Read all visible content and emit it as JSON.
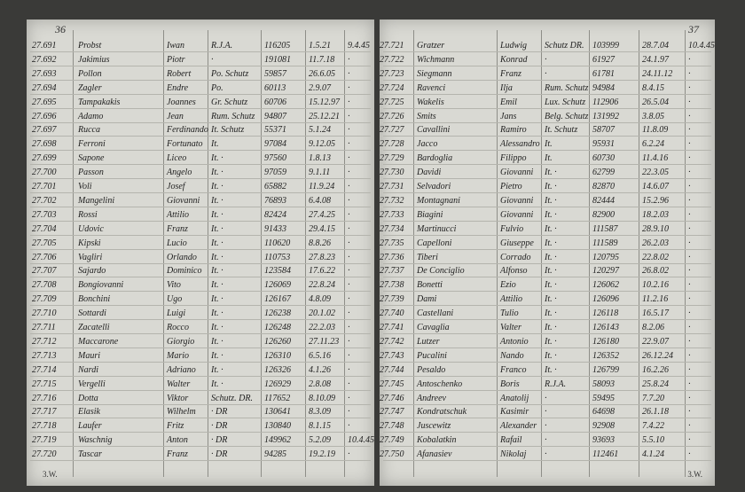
{
  "pages": [
    {
      "page_number": "36",
      "footer": "3.W.",
      "rows": [
        {
          "no": "27.691",
          "surname": "Probst",
          "name": "Iwan",
          "nat": "R.J.A.",
          "id": "116205",
          "born": "1.5.21",
          "date": "9.4.45"
        },
        {
          "no": "27.692",
          "surname": "Jakimius",
          "name": "Piotr",
          "nat": "·",
          "id": "191081",
          "born": "11.7.18",
          "date": "·"
        },
        {
          "no": "27.693",
          "surname": "Pollon",
          "name": "Robert",
          "nat": "Po. Schutz",
          "id": "59857",
          "born": "26.6.05",
          "date": "·"
        },
        {
          "no": "27.694",
          "surname": "Zagler",
          "name": "Endre",
          "nat": "Po.",
          "id": "60113",
          "born": "2.9.07",
          "date": "·"
        },
        {
          "no": "27.695",
          "surname": "Tampakakis",
          "name": "Joannes",
          "nat": "Gr. Schutz",
          "id": "60706",
          "born": "15.12.97",
          "date": "·"
        },
        {
          "no": "27.696",
          "surname": "Adamo",
          "name": "Jean",
          "nat": "Rum. Schutz",
          "id": "94807",
          "born": "25.12.21",
          "date": "·"
        },
        {
          "no": "27.697",
          "surname": "Rucca",
          "name": "Ferdinando",
          "nat": "It. Schutz",
          "id": "55371",
          "born": "5.1.24",
          "date": "·"
        },
        {
          "no": "27.698",
          "surname": "Ferroni",
          "name": "Fortunato",
          "nat": "It.",
          "id": "97084",
          "born": "9.12.05",
          "date": "·"
        },
        {
          "no": "27.699",
          "surname": "Sapone",
          "name": "Liceo",
          "nat": "It. ·",
          "id": "97560",
          "born": "1.8.13",
          "date": "·"
        },
        {
          "no": "27.700",
          "surname": "Passon",
          "name": "Angelo",
          "nat": "It. ·",
          "id": "97059",
          "born": "9.1.11",
          "date": "·"
        },
        {
          "no": "27.701",
          "surname": "Voli",
          "name": "Josef",
          "nat": "It. ·",
          "id": "65882",
          "born": "11.9.24",
          "date": "·"
        },
        {
          "no": "27.702",
          "surname": "Mangelini",
          "name": "Giovanni",
          "nat": "It. ·",
          "id": "76893",
          "born": "6.4.08",
          "date": "·"
        },
        {
          "no": "27.703",
          "surname": "Rossi",
          "name": "Attilio",
          "nat": "It. ·",
          "id": "82424",
          "born": "27.4.25",
          "date": "·"
        },
        {
          "no": "27.704",
          "surname": "Udovic",
          "name": "Franz",
          "nat": "It. ·",
          "id": "91433",
          "born": "29.4.15",
          "date": "·"
        },
        {
          "no": "27.705",
          "surname": "Kipski",
          "name": "Lucio",
          "nat": "It. ·",
          "id": "110620",
          "born": "8.8.26",
          "date": "·"
        },
        {
          "no": "27.706",
          "surname": "Vagliri",
          "name": "Orlando",
          "nat": "It. ·",
          "id": "110753",
          "born": "27.8.23",
          "date": "·"
        },
        {
          "no": "27.707",
          "surname": "Sajardo",
          "name": "Dominico",
          "nat": "It. ·",
          "id": "123584",
          "born": "17.6.22",
          "date": "·"
        },
        {
          "no": "27.708",
          "surname": "Bongiovanni",
          "name": "Vito",
          "nat": "It. ·",
          "id": "126069",
          "born": "22.8.24",
          "date": "·"
        },
        {
          "no": "27.709",
          "surname": "Bonchini",
          "name": "Ugo",
          "nat": "It. ·",
          "id": "126167",
          "born": "4.8.09",
          "date": "·"
        },
        {
          "no": "27.710",
          "surname": "Sottardi",
          "name": "Luigi",
          "nat": "It. ·",
          "id": "126238",
          "born": "20.1.02",
          "date": "·"
        },
        {
          "no": "27.711",
          "surname": "Zacatelli",
          "name": "Rocco",
          "nat": "It. ·",
          "id": "126248",
          "born": "22.2.03",
          "date": "·"
        },
        {
          "no": "27.712",
          "surname": "Maccarone",
          "name": "Giorgio",
          "nat": "It. ·",
          "id": "126260",
          "born": "27.11.23",
          "date": "·"
        },
        {
          "no": "27.713",
          "surname": "Mauri",
          "name": "Mario",
          "nat": "It. ·",
          "id": "126310",
          "born": "6.5.16",
          "date": "·"
        },
        {
          "no": "27.714",
          "surname": "Nardi",
          "name": "Adriano",
          "nat": "It. ·",
          "id": "126326",
          "born": "4.1.26",
          "date": "·"
        },
        {
          "no": "27.715",
          "surname": "Vergelli",
          "name": "Walter",
          "nat": "It. ·",
          "id": "126929",
          "born": "2.8.08",
          "date": "·"
        },
        {
          "no": "27.716",
          "surname": "Dotta",
          "name": "Viktor",
          "nat": "Schutz. DR.",
          "id": "117652",
          "born": "8.10.09",
          "date": "·"
        },
        {
          "no": "27.717",
          "surname": "Elasik",
          "name": "Wilhelm",
          "nat": "· DR",
          "id": "130641",
          "born": "8.3.09",
          "date": "·"
        },
        {
          "no": "27.718",
          "surname": "Laufer",
          "name": "Fritz",
          "nat": "· DR",
          "id": "130840",
          "born": "8.1.15",
          "date": "·"
        },
        {
          "no": "27.719",
          "surname": "Waschnig",
          "name": "Anton",
          "nat": "· DR",
          "id": "149962",
          "born": "5.2.09",
          "date": "10.4.45"
        },
        {
          "no": "27.720",
          "surname": "Tascar",
          "name": "Franz",
          "nat": "· DR",
          "id": "94285",
          "born": "19.2.19",
          "date": "·"
        }
      ]
    },
    {
      "page_number": "37",
      "footer": "3.W.",
      "rows": [
        {
          "no": "27.721",
          "surname": "Gratzer",
          "name": "Ludwig",
          "nat": "Schutz DR.",
          "id": "103999",
          "born": "28.7.04",
          "date": "10.4.45"
        },
        {
          "no": "27.722",
          "surname": "Wichmann",
          "name": "Konrad",
          "nat": "·",
          "id": "61927",
          "born": "24.1.97",
          "date": "·"
        },
        {
          "no": "27.723",
          "surname": "Siegmann",
          "name": "Franz",
          "nat": "·",
          "id": "61781",
          "born": "24.11.12",
          "date": "·"
        },
        {
          "no": "27.724",
          "surname": "Ravenci",
          "name": "Ilja",
          "nat": "Rum. Schutz",
          "id": "94984",
          "born": "8.4.15",
          "date": "·"
        },
        {
          "no": "27.725",
          "surname": "Wakelis",
          "name": "Emil",
          "nat": "Lux. Schutz",
          "id": "112906",
          "born": "26.5.04",
          "date": "·"
        },
        {
          "no": "27.726",
          "surname": "Smits",
          "name": "Jans",
          "nat": "Belg. Schutz",
          "id": "131992",
          "born": "3.8.05",
          "date": "·"
        },
        {
          "no": "27.727",
          "surname": "Cavallini",
          "name": "Ramiro",
          "nat": "It. Schutz",
          "id": "58707",
          "born": "11.8.09",
          "date": "·"
        },
        {
          "no": "27.728",
          "surname": "Jacco",
          "name": "Alessandro",
          "nat": "It.",
          "id": "95931",
          "born": "6.2.24",
          "date": "·"
        },
        {
          "no": "27.729",
          "surname": "Bardoglia",
          "name": "Filippo",
          "nat": "It.",
          "id": "60730",
          "born": "11.4.16",
          "date": "·"
        },
        {
          "no": "27.730",
          "surname": "Davidi",
          "name": "Giovanni",
          "nat": "It. ·",
          "id": "62799",
          "born": "22.3.05",
          "date": "·"
        },
        {
          "no": "27.731",
          "surname": "Selvadori",
          "name": "Pietro",
          "nat": "It. ·",
          "id": "82870",
          "born": "14.6.07",
          "date": "·"
        },
        {
          "no": "27.732",
          "surname": "Montagnani",
          "name": "Giovanni",
          "nat": "It. ·",
          "id": "82444",
          "born": "15.2.96",
          "date": "·"
        },
        {
          "no": "27.733",
          "surname": "Biagini",
          "name": "Giovanni",
          "nat": "It. ·",
          "id": "82900",
          "born": "18.2.03",
          "date": "·"
        },
        {
          "no": "27.734",
          "surname": "Martinucci",
          "name": "Fulvio",
          "nat": "It. ·",
          "id": "111587",
          "born": "28.9.10",
          "date": "·"
        },
        {
          "no": "27.735",
          "surname": "Capelloni",
          "name": "Giuseppe",
          "nat": "It. ·",
          "id": "111589",
          "born": "26.2.03",
          "date": "·"
        },
        {
          "no": "27.736",
          "surname": "Tiberi",
          "name": "Corrado",
          "nat": "It. ·",
          "id": "120795",
          "born": "22.8.02",
          "date": "·"
        },
        {
          "no": "27.737",
          "surname": "De Conciglio",
          "name": "Alfonso",
          "nat": "It. ·",
          "id": "120297",
          "born": "26.8.02",
          "date": "·"
        },
        {
          "no": "27.738",
          "surname": "Bonetti",
          "name": "Ezio",
          "nat": "It. ·",
          "id": "126062",
          "born": "10.2.16",
          "date": "·"
        },
        {
          "no": "27.739",
          "surname": "Dami",
          "name": "Attilio",
          "nat": "It. ·",
          "id": "126096",
          "born": "11.2.16",
          "date": "·"
        },
        {
          "no": "27.740",
          "surname": "Castellani",
          "name": "Tulio",
          "nat": "It. ·",
          "id": "126118",
          "born": "16.5.17",
          "date": "·"
        },
        {
          "no": "27.741",
          "surname": "Cavaglia",
          "name": "Valter",
          "nat": "It. ·",
          "id": "126143",
          "born": "8.2.06",
          "date": "·"
        },
        {
          "no": "27.742",
          "surname": "Lutzer",
          "name": "Antonio",
          "nat": "It. ·",
          "id": "126180",
          "born": "22.9.07",
          "date": "·"
        },
        {
          "no": "27.743",
          "surname": "Pucalini",
          "name": "Nando",
          "nat": "It. ·",
          "id": "126352",
          "born": "26.12.24",
          "date": "·"
        },
        {
          "no": "27.744",
          "surname": "Pesaldo",
          "name": "Franco",
          "nat": "It. ·",
          "id": "126799",
          "born": "16.2.26",
          "date": "·"
        },
        {
          "no": "27.745",
          "surname": "Antoschenko",
          "name": "Boris",
          "nat": "R.J.A.",
          "id": "58093",
          "born": "25.8.24",
          "date": "·"
        },
        {
          "no": "27.746",
          "surname": "Andreev",
          "name": "Anatolij",
          "nat": "·",
          "id": "59495",
          "born": "7.7.20",
          "date": "·"
        },
        {
          "no": "27.747",
          "surname": "Kondratschuk",
          "name": "Kasimir",
          "nat": "·",
          "id": "64698",
          "born": "26.1.18",
          "date": "·"
        },
        {
          "no": "27.748",
          "surname": "Juscewitz",
          "name": "Alexander",
          "nat": "·",
          "id": "92908",
          "born": "7.4.22",
          "date": "·"
        },
        {
          "no": "27.749",
          "surname": "Kobalatkin",
          "name": "Rafail",
          "nat": "·",
          "id": "93693",
          "born": "5.5.10",
          "date": "·"
        },
        {
          "no": "27.750",
          "surname": "Afanasiev",
          "name": "Nikolaj",
          "nat": "·",
          "id": "112461",
          "born": "4.1.24",
          "date": "·"
        }
      ]
    }
  ]
}
